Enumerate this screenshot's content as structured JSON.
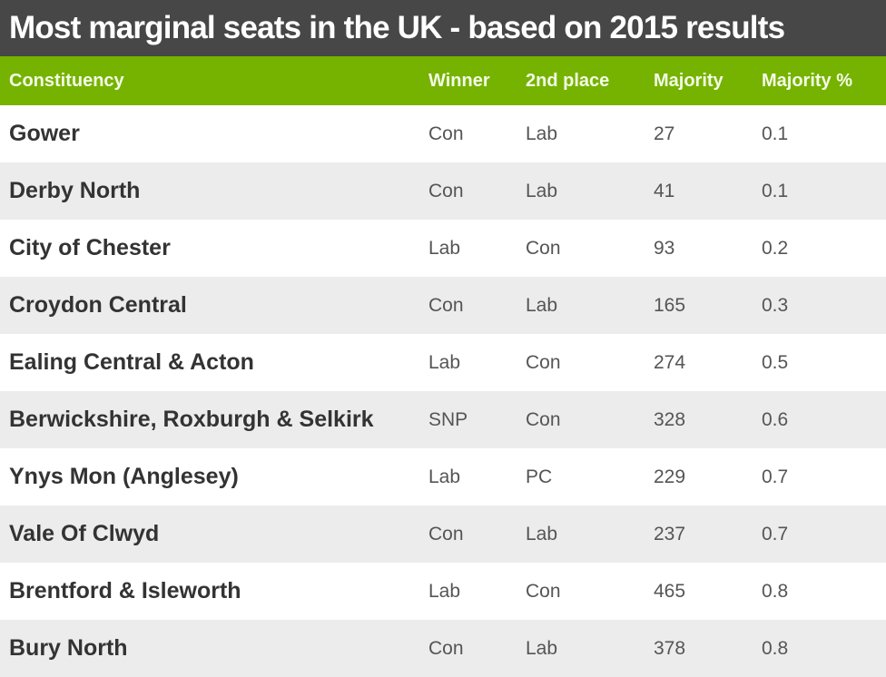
{
  "title": "Most marginal seats in the UK - based on 2015 results",
  "columns": [
    "Constituency",
    "Winner",
    "2nd place",
    "Majority",
    "Majority %"
  ],
  "rows": [
    {
      "constituency": "Gower",
      "winner": "Con",
      "second": "Lab",
      "majority": "27",
      "majority_pct": "0.1"
    },
    {
      "constituency": "Derby North",
      "winner": "Con",
      "second": "Lab",
      "majority": "41",
      "majority_pct": "0.1"
    },
    {
      "constituency": "City of Chester",
      "winner": "Lab",
      "second": "Con",
      "majority": "93",
      "majority_pct": "0.2"
    },
    {
      "constituency": "Croydon Central",
      "winner": "Con",
      "second": "Lab",
      "majority": "165",
      "majority_pct": "0.3"
    },
    {
      "constituency": "Ealing Central & Acton",
      "winner": "Lab",
      "second": "Con",
      "majority": "274",
      "majority_pct": "0.5"
    },
    {
      "constituency": "Berwickshire, Roxburgh & Selkirk",
      "winner": "SNP",
      "second": "Con",
      "majority": "328",
      "majority_pct": "0.6"
    },
    {
      "constituency": "Ynys Mon (Anglesey)",
      "winner": "Lab",
      "second": "PC",
      "majority": "229",
      "majority_pct": "0.7"
    },
    {
      "constituency": "Vale Of Clwyd",
      "winner": "Con",
      "second": "Lab",
      "majority": "237",
      "majority_pct": "0.7"
    },
    {
      "constituency": "Brentford & Isleworth",
      "winner": "Lab",
      "second": "Con",
      "majority": "465",
      "majority_pct": "0.8"
    },
    {
      "constituency": "Bury North",
      "winner": "Con",
      "second": "Lab",
      "majority": "378",
      "majority_pct": "0.8"
    }
  ],
  "colors": {
    "title_bg": "#474747",
    "header_bg": "#76b300",
    "row_alt_bg": "#ececec"
  },
  "chart_data": {
    "type": "table",
    "title": "Most marginal seats in the UK - based on 2015 results",
    "columns": [
      "Constituency",
      "Winner",
      "2nd place",
      "Majority",
      "Majority %"
    ],
    "rows": [
      [
        "Gower",
        "Con",
        "Lab",
        27,
        0.1
      ],
      [
        "Derby North",
        "Con",
        "Lab",
        41,
        0.1
      ],
      [
        "City of Chester",
        "Lab",
        "Con",
        93,
        0.2
      ],
      [
        "Croydon Central",
        "Con",
        "Lab",
        165,
        0.3
      ],
      [
        "Ealing Central & Acton",
        "Lab",
        "Con",
        274,
        0.5
      ],
      [
        "Berwickshire, Roxburgh & Selkirk",
        "SNP",
        "Con",
        328,
        0.6
      ],
      [
        "Ynys Mon (Anglesey)",
        "Lab",
        "PC",
        229,
        0.7
      ],
      [
        "Vale Of Clwyd",
        "Con",
        "Lab",
        237,
        0.7
      ],
      [
        "Brentford & Isleworth",
        "Lab",
        "Con",
        465,
        0.8
      ],
      [
        "Bury North",
        "Con",
        "Lab",
        378,
        0.8
      ]
    ]
  }
}
